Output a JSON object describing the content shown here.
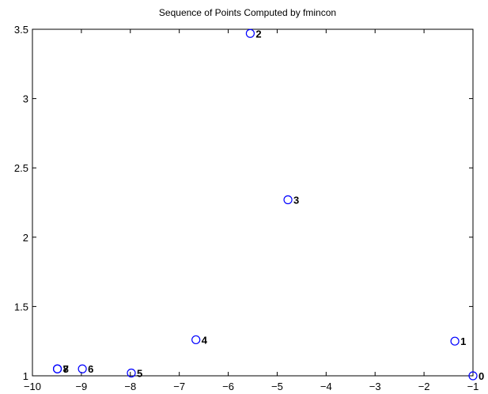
{
  "chart_data": {
    "type": "scatter",
    "title": "Sequence of Points Computed by fmincon",
    "xlabel": "",
    "ylabel": "",
    "xlim": [
      -10,
      -1
    ],
    "ylim": [
      1,
      3.5
    ],
    "x_ticks": [
      -10,
      -9,
      -8,
      -7,
      -6,
      -5,
      -4,
      -3,
      -2,
      -1
    ],
    "x_tick_labels": [
      "−10",
      "−9",
      "−8",
      "−7",
      "−6",
      "−5",
      "−4",
      "−3",
      "−2",
      "−1"
    ],
    "y_ticks": [
      1,
      1.5,
      2,
      2.5,
      3,
      3.5
    ],
    "y_tick_labels": [
      "1",
      "1.5",
      "2",
      "2.5",
      "3",
      "3.5"
    ],
    "grid": false,
    "marker": "open-circle",
    "marker_color": "#0000ff",
    "points": [
      {
        "label": "0",
        "x": -1.0,
        "y": 1.0
      },
      {
        "label": "1",
        "x": -1.37,
        "y": 1.25
      },
      {
        "label": "2",
        "x": -5.55,
        "y": 3.47
      },
      {
        "label": "3",
        "x": -4.78,
        "y": 2.27
      },
      {
        "label": "4",
        "x": -6.66,
        "y": 1.26
      },
      {
        "label": "5",
        "x": -7.98,
        "y": 1.02
      },
      {
        "label": "6",
        "x": -8.98,
        "y": 1.05
      },
      {
        "label": "7",
        "x": -9.49,
        "y": 1.05
      },
      {
        "label": "8",
        "x": -9.49,
        "y": 1.05
      }
    ]
  }
}
